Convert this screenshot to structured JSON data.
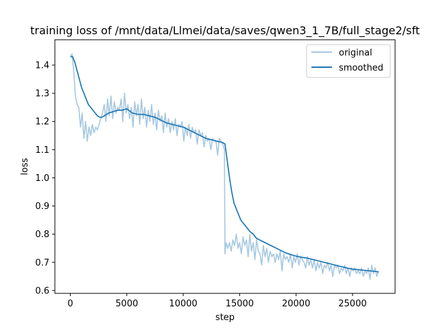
{
  "chart_data": {
    "type": "line",
    "title": "training loss of /mnt/data/Llmei/data/saves/qwen3_1_7B/full_stage2/sft",
    "xlabel": "step",
    "ylabel": "loss",
    "xlim": [
      -1370,
      28770
    ],
    "ylim": [
      0.59,
      1.49
    ],
    "xticks": [
      0,
      5000,
      10000,
      15000,
      20000,
      25000
    ],
    "xtick_labels": [
      "0",
      "5000",
      "10000",
      "15000",
      "20000",
      "25000"
    ],
    "yticks": [
      0.6,
      0.7,
      0.8,
      0.9,
      1.0,
      1.1,
      1.2,
      1.3,
      1.4
    ],
    "ytick_labels": [
      "0.6",
      "0.7",
      "0.8",
      "0.9",
      "1.0",
      "1.1",
      "1.2",
      "1.3",
      "1.4"
    ],
    "grid": false,
    "legend_position": "top-right",
    "series": [
      {
        "name": "original",
        "color": "#a6c8e0",
        "x": [
          0,
          150,
          300,
          450,
          600,
          750,
          900,
          1050,
          1200,
          1350,
          1500,
          1650,
          1800,
          1950,
          2100,
          2250,
          2400,
          2550,
          2700,
          2850,
          3000,
          3150,
          3300,
          3450,
          3600,
          3750,
          3900,
          4050,
          4200,
          4350,
          4500,
          4650,
          4800,
          4950,
          5100,
          5250,
          5400,
          5550,
          5700,
          5850,
          6000,
          6150,
          6300,
          6450,
          6600,
          6750,
          6900,
          7050,
          7200,
          7350,
          7500,
          7650,
          7800,
          7950,
          8100,
          8250,
          8400,
          8550,
          8700,
          8850,
          9000,
          9150,
          9300,
          9450,
          9600,
          9750,
          9900,
          10050,
          10200,
          10350,
          10500,
          10650,
          10800,
          10950,
          11100,
          11250,
          11400,
          11550,
          11700,
          11850,
          12000,
          12150,
          12300,
          12450,
          12600,
          12750,
          12900,
          13050,
          13200,
          13350,
          13500,
          13650,
          13700,
          13800,
          13950,
          14100,
          14250,
          14400,
          14550,
          14700,
          14850,
          15000,
          15150,
          15300,
          15450,
          15600,
          15750,
          15900,
          16050,
          16200,
          16350,
          16500,
          16650,
          16800,
          16950,
          17100,
          17250,
          17400,
          17550,
          17700,
          17850,
          18000,
          18150,
          18300,
          18450,
          18600,
          18750,
          18900,
          19050,
          19200,
          19350,
          19500,
          19650,
          19800,
          19950,
          20100,
          20250,
          20400,
          20550,
          20700,
          20850,
          21000,
          21150,
          21300,
          21450,
          21600,
          21750,
          21900,
          22050,
          22200,
          22350,
          22500,
          22650,
          22800,
          22950,
          23100,
          23250,
          23400,
          23550,
          23700,
          23850,
          24000,
          24150,
          24300,
          24450,
          24600,
          24750,
          24900,
          25050,
          25200,
          25350,
          25500,
          25650,
          25800,
          25950,
          26100,
          26250,
          26400,
          26550,
          26700,
          26850,
          27000,
          27150,
          27300
        ],
        "y": [
          1.43,
          1.44,
          1.38,
          1.29,
          1.26,
          1.25,
          1.18,
          1.23,
          1.14,
          1.2,
          1.13,
          1.18,
          1.15,
          1.19,
          1.16,
          1.18,
          1.17,
          1.19,
          1.21,
          1.23,
          1.26,
          1.2,
          1.28,
          1.22,
          1.29,
          1.21,
          1.27,
          1.23,
          1.25,
          1.24,
          1.28,
          1.2,
          1.3,
          1.23,
          1.26,
          1.21,
          1.25,
          1.18,
          1.27,
          1.22,
          1.26,
          1.19,
          1.28,
          1.21,
          1.25,
          1.18,
          1.24,
          1.2,
          1.26,
          1.19,
          1.23,
          1.17,
          1.24,
          1.2,
          1.22,
          1.16,
          1.23,
          1.18,
          1.21,
          1.16,
          1.2,
          1.17,
          1.21,
          1.15,
          1.19,
          1.18,
          1.2,
          1.13,
          1.18,
          1.15,
          1.19,
          1.14,
          1.18,
          1.16,
          1.17,
          1.12,
          1.17,
          1.15,
          1.16,
          1.11,
          1.15,
          1.13,
          1.14,
          1.1,
          1.14,
          1.13,
          1.13,
          1.08,
          1.14,
          1.13,
          1.12,
          1.1,
          0.73,
          0.77,
          0.75,
          0.77,
          0.74,
          0.78,
          0.76,
          0.8,
          0.75,
          0.77,
          0.73,
          0.79,
          0.76,
          0.78,
          0.72,
          0.8,
          0.74,
          0.77,
          0.71,
          0.78,
          0.74,
          0.73,
          0.69,
          0.76,
          0.72,
          0.75,
          0.7,
          0.74,
          0.72,
          0.73,
          0.7,
          0.73,
          0.71,
          0.74,
          0.67,
          0.73,
          0.71,
          0.72,
          0.7,
          0.73,
          0.68,
          0.72,
          0.7,
          0.73,
          0.69,
          0.72,
          0.71,
          0.7,
          0.68,
          0.72,
          0.69,
          0.71,
          0.68,
          0.71,
          0.67,
          0.7,
          0.68,
          0.7,
          0.66,
          0.69,
          0.68,
          0.7,
          0.67,
          0.69,
          0.65,
          0.69,
          0.68,
          0.69,
          0.66,
          0.68,
          0.67,
          0.69,
          0.66,
          0.68,
          0.65,
          0.68,
          0.67,
          0.68,
          0.66,
          0.67,
          0.66,
          0.68,
          0.65,
          0.67,
          0.66,
          0.68,
          0.64,
          0.69,
          0.66,
          0.68,
          0.65,
          0.67
        ]
      },
      {
        "name": "smoothed",
        "color": "#1f77b4",
        "x": [
          0,
          200,
          400,
          600,
          800,
          1000,
          1200,
          1400,
          1600,
          1800,
          2000,
          2200,
          2400,
          2600,
          2800,
          3000,
          3400,
          3800,
          4200,
          4600,
          5000,
          5500,
          6000,
          6500,
          7000,
          7500,
          8000,
          8500,
          9000,
          9500,
          10000,
          10500,
          11000,
          11500,
          12000,
          12500,
          13000,
          13500,
          13700,
          13900,
          14100,
          14300,
          14500,
          14700,
          14900,
          15100,
          15300,
          15500,
          15700,
          15900,
          16200,
          16500,
          17000,
          17500,
          18000,
          18500,
          19000,
          19500,
          20000,
          20500,
          21000,
          21500,
          22000,
          22500,
          23000,
          23500,
          24000,
          24500,
          25000,
          25500,
          26000,
          26500,
          27000,
          27300
        ],
        "y": [
          1.43,
          1.43,
          1.41,
          1.38,
          1.35,
          1.32,
          1.3,
          1.28,
          1.26,
          1.25,
          1.24,
          1.23,
          1.22,
          1.215,
          1.215,
          1.22,
          1.23,
          1.235,
          1.24,
          1.24,
          1.245,
          1.23,
          1.225,
          1.225,
          1.22,
          1.215,
          1.205,
          1.195,
          1.19,
          1.185,
          1.18,
          1.17,
          1.16,
          1.15,
          1.14,
          1.135,
          1.13,
          1.125,
          1.12,
          1.06,
          1.0,
          0.95,
          0.91,
          0.89,
          0.87,
          0.85,
          0.84,
          0.83,
          0.82,
          0.81,
          0.8,
          0.785,
          0.775,
          0.765,
          0.755,
          0.745,
          0.735,
          0.728,
          0.722,
          0.718,
          0.715,
          0.71,
          0.705,
          0.7,
          0.695,
          0.69,
          0.685,
          0.68,
          0.676,
          0.674,
          0.672,
          0.67,
          0.668,
          0.666
        ]
      }
    ]
  }
}
